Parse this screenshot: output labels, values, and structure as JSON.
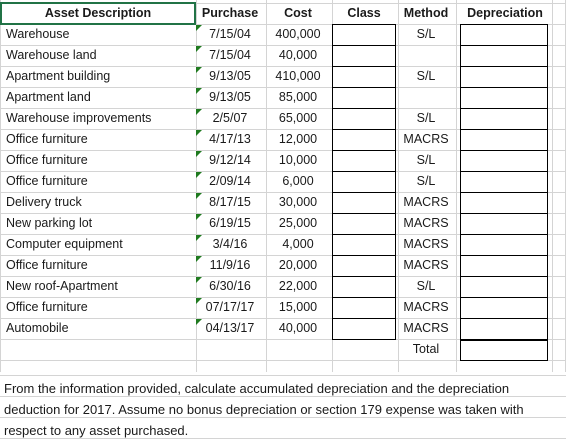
{
  "headers": {
    "asset": "Asset Description",
    "purchase": "Purchase",
    "cost": "Cost",
    "class": "Class",
    "method": "Method",
    "depreciation": "Depreciation"
  },
  "rows": [
    {
      "desc": "Warehouse",
      "date": "7/15/04",
      "cost": "400,000",
      "method": "S/L"
    },
    {
      "desc": "Warehouse land",
      "date": "7/15/04",
      "cost": "40,000",
      "method": ""
    },
    {
      "desc": "Apartment building",
      "date": "9/13/05",
      "cost": "410,000",
      "method": "S/L"
    },
    {
      "desc": "Apartment land",
      "date": "9/13/05",
      "cost": "85,000",
      "method": ""
    },
    {
      "desc": "Warehouse improvements",
      "date": "2/5/07",
      "cost": "65,000",
      "method": "S/L"
    },
    {
      "desc": "Office furniture",
      "date": "4/17/13",
      "cost": "12,000",
      "method": "MACRS"
    },
    {
      "desc": "Office furniture",
      "date": "9/12/14",
      "cost": "10,000",
      "method": "S/L"
    },
    {
      "desc": "Office furniture",
      "date": "2/09/14",
      "cost": "6,000",
      "method": "S/L"
    },
    {
      "desc": "Delivery truck",
      "date": "8/17/15",
      "cost": "30,000",
      "method": "MACRS"
    },
    {
      "desc": "New parking lot",
      "date": "6/19/15",
      "cost": "25,000",
      "method": "MACRS"
    },
    {
      "desc": "Computer equipment",
      "date": "3/4/16",
      "cost": "4,000",
      "method": "MACRS"
    },
    {
      "desc": "Office furniture",
      "date": "11/9/16",
      "cost": "20,000",
      "method": "MACRS"
    },
    {
      "desc": "New roof-Apartment",
      "date": "6/30/16",
      "cost": "22,000",
      "method": "S/L"
    },
    {
      "desc": "Office furniture",
      "date": "07/17/17",
      "cost": "15,000",
      "method": "MACRS"
    },
    {
      "desc": "Automobile",
      "date": "04/13/17",
      "cost": "40,000",
      "method": "MACRS"
    }
  ],
  "total_label": "Total",
  "note": "From the information provided, calculate accumulated depreciation and the depreciation deduction for 2017.  Assume no bonus depreciation or section 179 expense was taken with respect to any asset purchased.",
  "colors": {
    "selection": "#217346",
    "error_triangle": "#1f7a1f",
    "gridline": "#d4d4d4"
  }
}
